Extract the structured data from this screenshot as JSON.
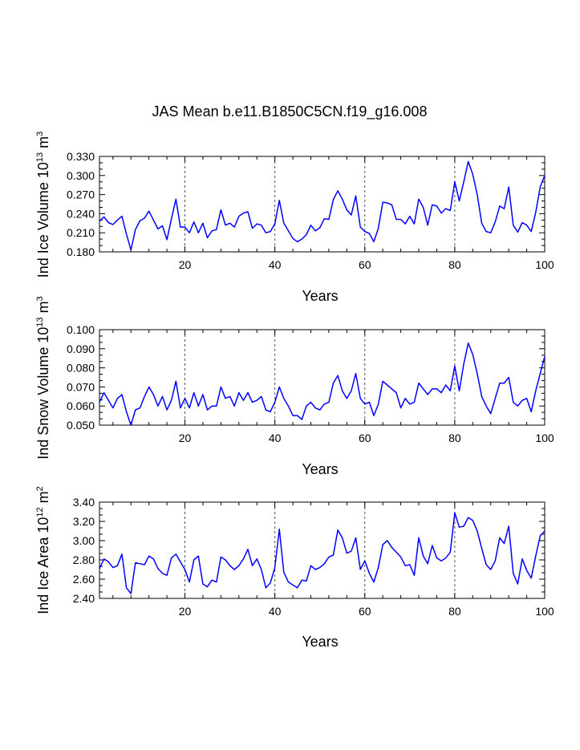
{
  "figure": {
    "title": "JAS Mean b.e11.B1850C5CN.f19_g16.008",
    "line_color": "#0000ff"
  },
  "chart_data": [
    {
      "type": "line",
      "title": "",
      "xlabel": "Years",
      "ylabel": {
        "base": "Ind Ice Volume 10",
        "exp1": "13",
        "mid": " m",
        "exp2": "3"
      },
      "xlim": [
        1,
        100
      ],
      "ylim": [
        0.18,
        0.33
      ],
      "xticks": [
        20,
        40,
        60,
        80,
        100
      ],
      "xtick_labels": [
        "20",
        "40",
        "60",
        "80",
        "100"
      ],
      "yticks": [
        0.18,
        0.21,
        0.24,
        0.27,
        0.3,
        0.33
      ],
      "ytick_labels": [
        "0.180",
        "0.210",
        "0.240",
        "0.270",
        "0.300",
        "0.330"
      ],
      "reference_lines_x": [
        20,
        40,
        60,
        80
      ],
      "series": [
        {
          "name": "Ind Ice Volume",
          "x": [
            1,
            2,
            3,
            4,
            5,
            6,
            7,
            8,
            9,
            10,
            11,
            12,
            13,
            14,
            15,
            16,
            17,
            18,
            19,
            20,
            21,
            22,
            23,
            24,
            25,
            26,
            27,
            28,
            29,
            30,
            31,
            32,
            33,
            34,
            35,
            36,
            37,
            38,
            39,
            40,
            41,
            42,
            43,
            44,
            45,
            46,
            47,
            48,
            49,
            50,
            51,
            52,
            53,
            54,
            55,
            56,
            57,
            58,
            59,
            60,
            61,
            62,
            63,
            64,
            65,
            66,
            67,
            68,
            69,
            70,
            71,
            72,
            73,
            74,
            75,
            76,
            77,
            78,
            79,
            80,
            81,
            82,
            83,
            84,
            85,
            86,
            87,
            88,
            89,
            90,
            91,
            92,
            93,
            94,
            95,
            96,
            97,
            98,
            99,
            100
          ],
          "values": [
            0.228,
            0.235,
            0.226,
            0.223,
            0.23,
            0.236,
            0.208,
            0.183,
            0.215,
            0.229,
            0.233,
            0.244,
            0.23,
            0.216,
            0.221,
            0.199,
            0.232,
            0.263,
            0.219,
            0.219,
            0.21,
            0.227,
            0.21,
            0.225,
            0.202,
            0.213,
            0.215,
            0.246,
            0.222,
            0.225,
            0.219,
            0.236,
            0.241,
            0.243,
            0.217,
            0.224,
            0.222,
            0.21,
            0.212,
            0.224,
            0.261,
            0.225,
            0.213,
            0.201,
            0.196,
            0.2,
            0.207,
            0.222,
            0.213,
            0.218,
            0.232,
            0.231,
            0.262,
            0.276,
            0.263,
            0.246,
            0.238,
            0.268,
            0.219,
            0.212,
            0.209,
            0.196,
            0.217,
            0.258,
            0.257,
            0.254,
            0.231,
            0.231,
            0.224,
            0.236,
            0.224,
            0.263,
            0.25,
            0.222,
            0.254,
            0.252,
            0.241,
            0.248,
            0.245,
            0.29,
            0.26,
            0.29,
            0.322,
            0.302,
            0.27,
            0.225,
            0.212,
            0.21,
            0.227,
            0.252,
            0.248,
            0.282,
            0.222,
            0.211,
            0.226,
            0.222,
            0.212,
            0.242,
            0.282,
            0.3
          ]
        }
      ]
    },
    {
      "type": "line",
      "title": "",
      "xlabel": "Years",
      "ylabel": {
        "base": "Ind Snow Volume 10",
        "exp1": "13",
        "mid": " m",
        "exp2": "3"
      },
      "xlim": [
        1,
        100
      ],
      "ylim": [
        0.05,
        0.1
      ],
      "xticks": [
        20,
        40,
        60,
        80,
        100
      ],
      "xtick_labels": [
        "20",
        "40",
        "60",
        "80",
        "100"
      ],
      "yticks": [
        0.05,
        0.06,
        0.07,
        0.08,
        0.09,
        0.1
      ],
      "ytick_labels": [
        "0.050",
        "0.060",
        "0.070",
        "0.080",
        "0.090",
        "0.100"
      ],
      "reference_lines_x": [
        20,
        40,
        60,
        80
      ],
      "series": [
        {
          "name": "Ind Snow Volume",
          "x": [
            1,
            2,
            3,
            4,
            5,
            6,
            7,
            8,
            9,
            10,
            11,
            12,
            13,
            14,
            15,
            16,
            17,
            18,
            19,
            20,
            21,
            22,
            23,
            24,
            25,
            26,
            27,
            28,
            29,
            30,
            31,
            32,
            33,
            34,
            35,
            36,
            37,
            38,
            39,
            40,
            41,
            42,
            43,
            44,
            45,
            46,
            47,
            48,
            49,
            50,
            51,
            52,
            53,
            54,
            55,
            56,
            57,
            58,
            59,
            60,
            61,
            62,
            63,
            64,
            65,
            66,
            67,
            68,
            69,
            70,
            71,
            72,
            73,
            74,
            75,
            76,
            77,
            78,
            79,
            80,
            81,
            82,
            83,
            84,
            85,
            86,
            87,
            88,
            89,
            90,
            91,
            92,
            93,
            94,
            95,
            96,
            97,
            98,
            99,
            100
          ],
          "values": [
            0.062,
            0.067,
            0.063,
            0.059,
            0.064,
            0.066,
            0.057,
            0.05,
            0.058,
            0.059,
            0.065,
            0.07,
            0.066,
            0.06,
            0.065,
            0.058,
            0.063,
            0.073,
            0.059,
            0.064,
            0.059,
            0.067,
            0.06,
            0.066,
            0.058,
            0.06,
            0.06,
            0.07,
            0.064,
            0.065,
            0.06,
            0.067,
            0.063,
            0.067,
            0.062,
            0.063,
            0.065,
            0.058,
            0.057,
            0.062,
            0.07,
            0.064,
            0.06,
            0.055,
            0.055,
            0.053,
            0.06,
            0.062,
            0.059,
            0.058,
            0.061,
            0.062,
            0.072,
            0.076,
            0.068,
            0.064,
            0.068,
            0.077,
            0.064,
            0.061,
            0.062,
            0.055,
            0.061,
            0.073,
            0.071,
            0.069,
            0.067,
            0.059,
            0.064,
            0.061,
            0.062,
            0.072,
            0.069,
            0.066,
            0.069,
            0.069,
            0.067,
            0.071,
            0.068,
            0.081,
            0.068,
            0.082,
            0.093,
            0.087,
            0.077,
            0.065,
            0.06,
            0.056,
            0.064,
            0.072,
            0.072,
            0.075,
            0.062,
            0.06,
            0.063,
            0.064,
            0.057,
            0.068,
            0.077,
            0.086
          ]
        }
      ]
    },
    {
      "type": "line",
      "title": "",
      "xlabel": "Years",
      "ylabel": {
        "base": "Ind Ice Area 10",
        "exp1": "12",
        "mid": " m",
        "exp2": "2"
      },
      "xlim": [
        1,
        100
      ],
      "ylim": [
        2.4,
        3.4
      ],
      "xticks": [
        20,
        40,
        60,
        80,
        100
      ],
      "xtick_labels": [
        "20",
        "40",
        "60",
        "80",
        "100"
      ],
      "yticks": [
        2.4,
        2.6,
        2.8,
        3.0,
        3.2,
        3.4
      ],
      "ytick_labels": [
        "2.40",
        "2.60",
        "2.80",
        "3.00",
        "3.20",
        "3.40"
      ],
      "reference_lines_x": [
        20,
        40,
        60,
        80
      ],
      "series": [
        {
          "name": "Ind Ice Area",
          "x": [
            1,
            2,
            3,
            4,
            5,
            6,
            7,
            8,
            9,
            10,
            11,
            12,
            13,
            14,
            15,
            16,
            17,
            18,
            19,
            20,
            21,
            22,
            23,
            24,
            25,
            26,
            27,
            28,
            29,
            30,
            31,
            32,
            33,
            34,
            35,
            36,
            37,
            38,
            39,
            40,
            41,
            42,
            43,
            44,
            45,
            46,
            47,
            48,
            49,
            50,
            51,
            52,
            53,
            54,
            55,
            56,
            57,
            58,
            59,
            60,
            61,
            62,
            63,
            64,
            65,
            66,
            67,
            68,
            69,
            70,
            71,
            72,
            73,
            74,
            75,
            76,
            77,
            78,
            79,
            80,
            81,
            82,
            83,
            84,
            85,
            86,
            87,
            88,
            89,
            90,
            91,
            92,
            93,
            94,
            95,
            96,
            97,
            98,
            99,
            100
          ],
          "values": [
            2.71,
            2.81,
            2.78,
            2.72,
            2.74,
            2.86,
            2.51,
            2.45,
            2.77,
            2.76,
            2.75,
            2.84,
            2.81,
            2.71,
            2.66,
            2.64,
            2.82,
            2.86,
            2.78,
            2.7,
            2.57,
            2.8,
            2.84,
            2.55,
            2.52,
            2.59,
            2.57,
            2.83,
            2.8,
            2.74,
            2.7,
            2.74,
            2.81,
            2.91,
            2.74,
            2.81,
            2.7,
            2.51,
            2.56,
            2.72,
            3.12,
            2.67,
            2.57,
            2.54,
            2.51,
            2.59,
            2.58,
            2.74,
            2.7,
            2.72,
            2.76,
            2.83,
            2.85,
            3.11,
            3.03,
            2.87,
            2.89,
            3.03,
            2.7,
            2.79,
            2.66,
            2.57,
            2.72,
            2.96,
            3.0,
            2.93,
            2.88,
            2.83,
            2.74,
            2.75,
            2.64,
            3.03,
            2.84,
            2.76,
            2.95,
            2.82,
            2.79,
            2.82,
            2.88,
            3.29,
            3.14,
            3.15,
            3.24,
            3.21,
            3.1,
            2.92,
            2.75,
            2.7,
            2.79,
            3.03,
            2.97,
            3.15,
            2.66,
            2.55,
            2.81,
            2.69,
            2.61,
            2.84,
            3.05,
            3.1
          ]
        }
      ]
    }
  ]
}
